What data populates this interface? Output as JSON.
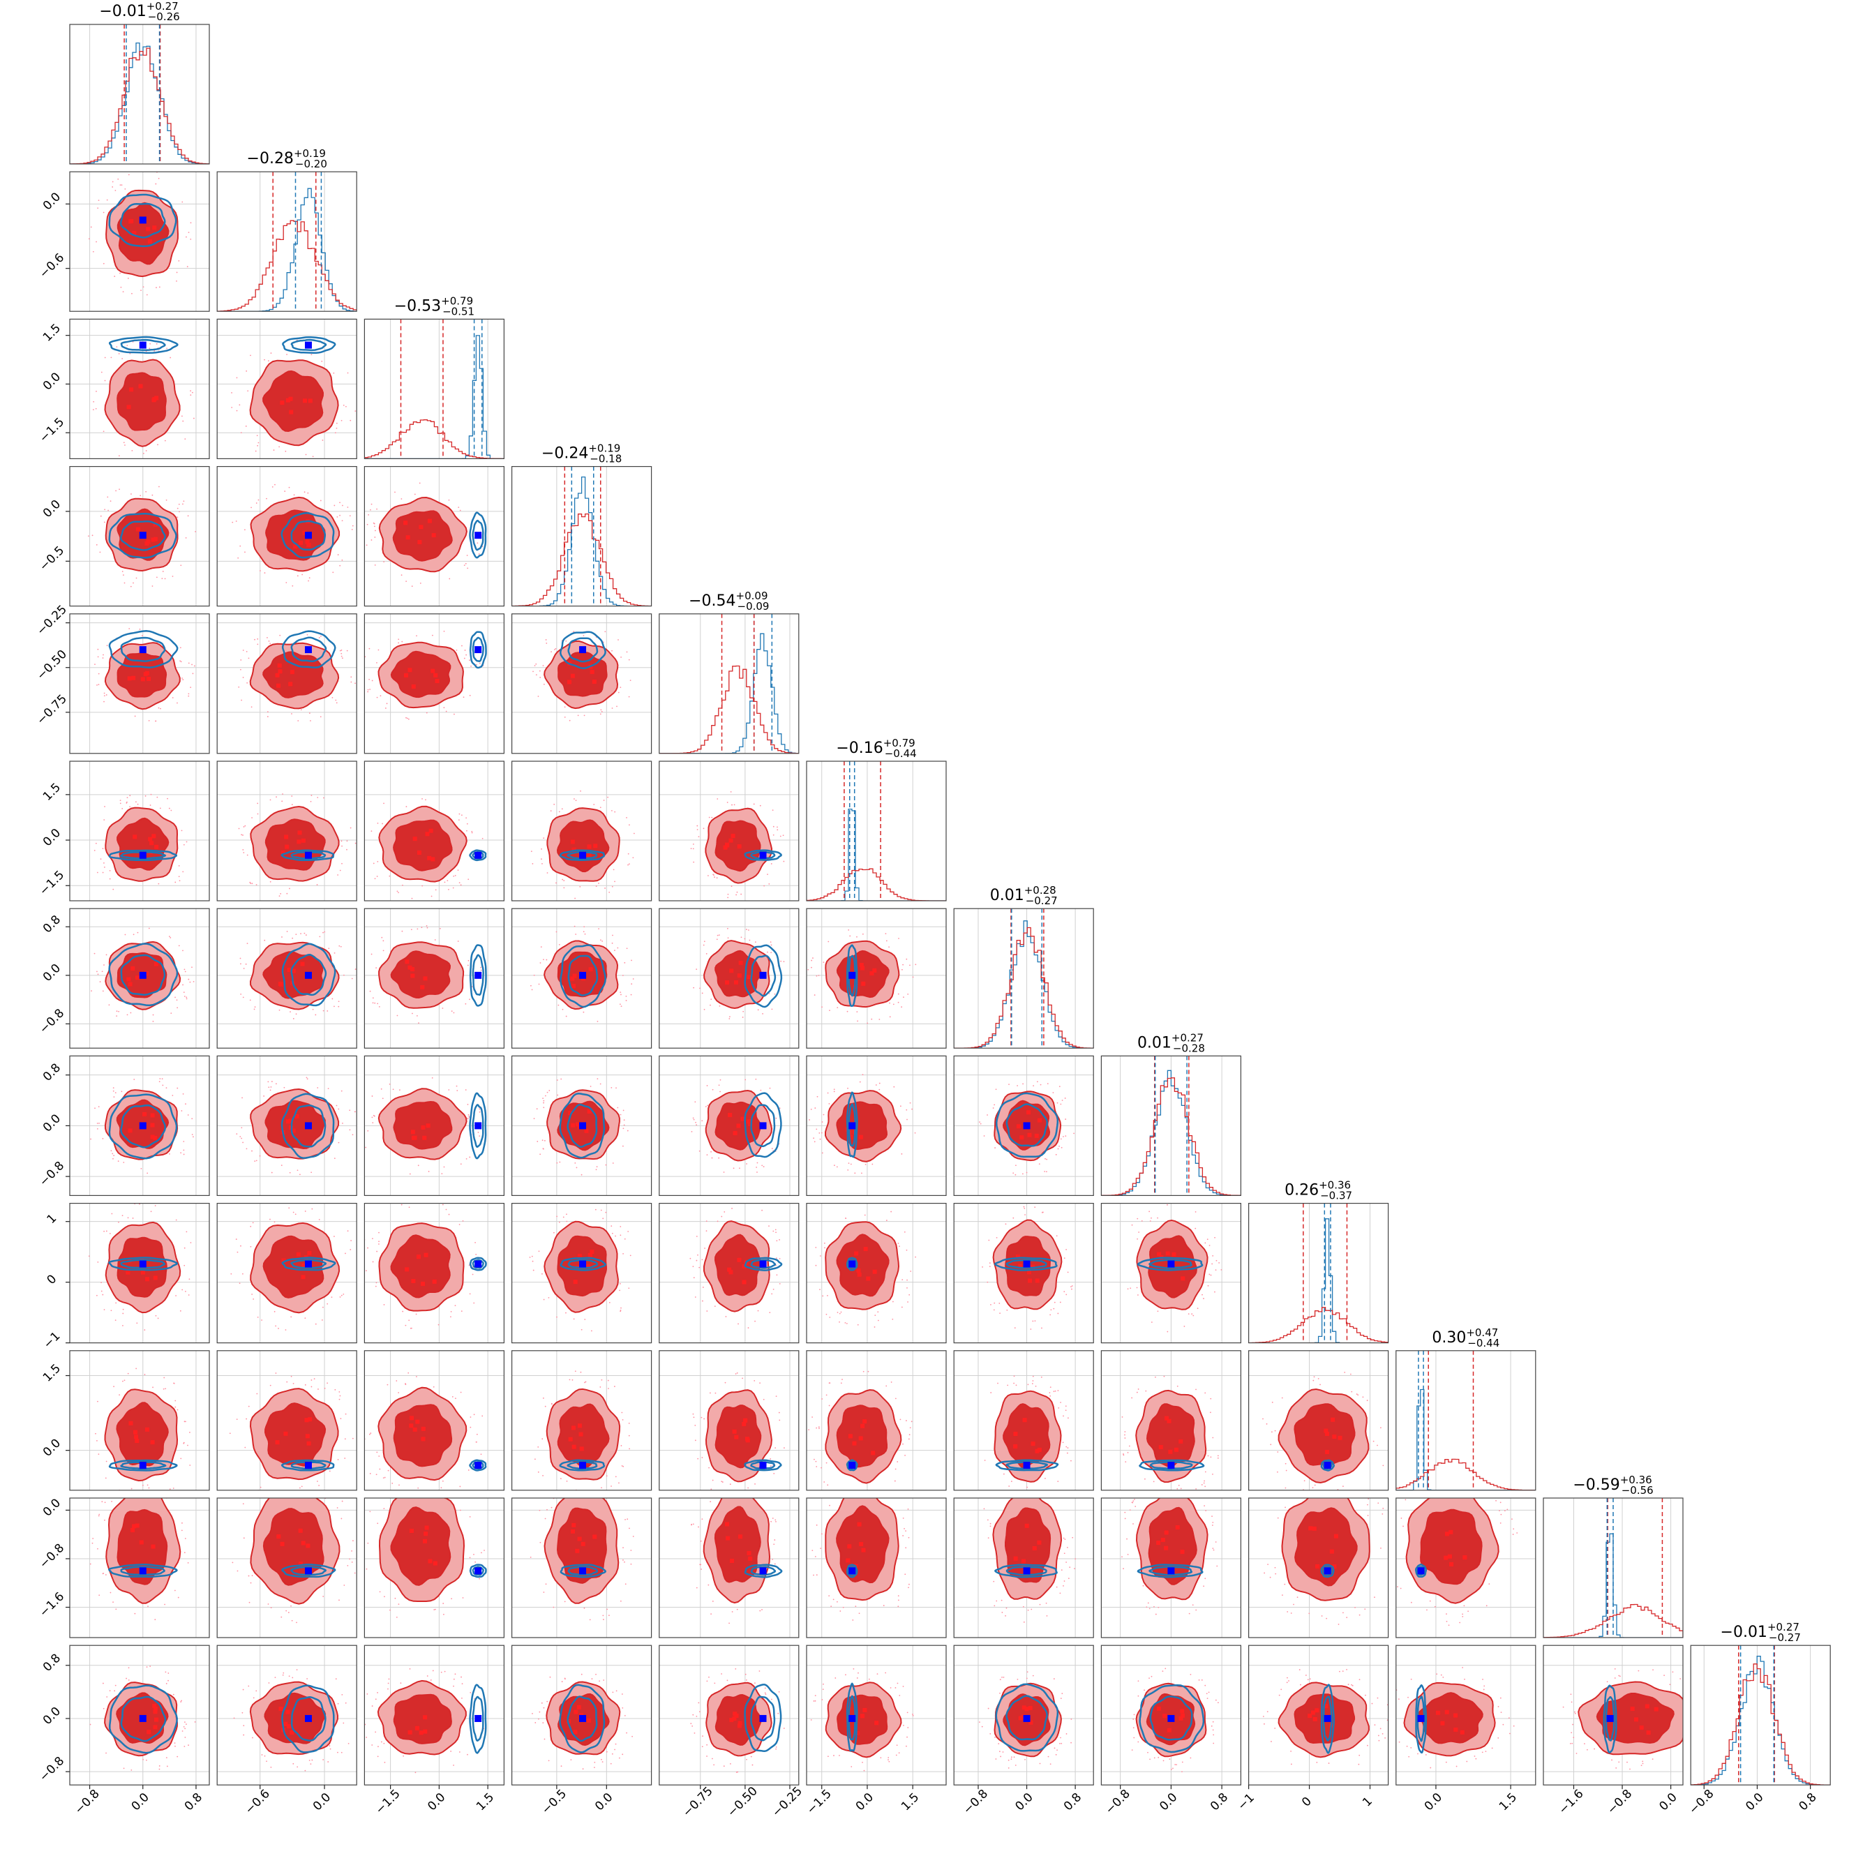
{
  "chart_data": {
    "type": "corner",
    "n_params": 12,
    "titles": [
      {
        "median": "−0.01",
        "plus": "+0.27",
        "minus": "−0.26"
      },
      {
        "median": "−0.28",
        "plus": "+0.19",
        "minus": "−0.20"
      },
      {
        "median": "−0.53",
        "plus": "+0.79",
        "minus": "−0.51"
      },
      {
        "median": "−0.24",
        "plus": "+0.19",
        "minus": "−0.18"
      },
      {
        "median": "−0.54",
        "plus": "+0.09",
        "minus": "−0.09"
      },
      {
        "median": "−0.16",
        "plus": "+0.79",
        "minus": "−0.44"
      },
      {
        "median": "0.01",
        "plus": "+0.28",
        "minus": "−0.27"
      },
      {
        "median": "0.01",
        "plus": "+0.27",
        "minus": "−0.28"
      },
      {
        "median": "0.26",
        "plus": "+0.36",
        "minus": "−0.37"
      },
      {
        "median": "0.30",
        "plus": "+0.47",
        "minus": "−0.44"
      },
      {
        "median": "−0.59",
        "plus": "+0.36",
        "minus": "−0.56"
      },
      {
        "median": "−0.01",
        "plus": "+0.27",
        "minus": "−0.27"
      }
    ],
    "params": [
      {
        "range": [
          -1.1,
          1.0
        ],
        "ticks": [
          -0.8,
          0.0,
          0.8
        ],
        "tick_labels": [
          "−0.8",
          "0.0",
          "0.8"
        ],
        "red": {
          "mu": -0.01,
          "sd": 0.27
        },
        "blue": {
          "mu": 0.0,
          "sd": 0.25
        },
        "truth": 0.0
      },
      {
        "range": [
          -1.0,
          0.3
        ],
        "ticks": [
          -0.6,
          0.0
        ],
        "tick_labels": [
          "−0.6",
          "0.0"
        ],
        "red": {
          "mu": -0.28,
          "sd": 0.2
        },
        "blue": {
          "mu": -0.15,
          "sd": 0.12
        },
        "truth": -0.15
      },
      {
        "range": [
          -2.3,
          2.0
        ],
        "ticks": [
          -1.5,
          0.0,
          1.5
        ],
        "tick_labels": [
          "−1.5",
          "0.0",
          "1.5"
        ],
        "red": {
          "mu": -0.53,
          "sd": 0.65
        },
        "blue": {
          "mu": 1.2,
          "sd": 0.12
        },
        "truth": 1.2
      },
      {
        "range": [
          -0.95,
          0.45
        ],
        "ticks": [
          -0.5,
          0.0
        ],
        "tick_labels": [
          "−0.5",
          "0.0"
        ],
        "red": {
          "mu": -0.24,
          "sd": 0.18
        },
        "blue": {
          "mu": -0.24,
          "sd": 0.11
        },
        "truth": -0.24
      },
      {
        "range": [
          -0.98,
          -0.2
        ],
        "ticks": [
          -0.75,
          -0.5,
          -0.25
        ],
        "tick_labels": [
          "−0.75",
          "−0.50",
          "−0.25"
        ],
        "red": {
          "mu": -0.54,
          "sd": 0.09
        },
        "blue": {
          "mu": -0.4,
          "sd": 0.05
        },
        "truth": -0.4
      },
      {
        "range": [
          -2.0,
          2.6
        ],
        "ticks": [
          -1.5,
          0.0,
          1.5
        ],
        "tick_labels": [
          "−1.5",
          "0.0",
          "1.5"
        ],
        "red": {
          "mu": -0.16,
          "sd": 0.6
        },
        "blue": {
          "mu": -0.5,
          "sd": 0.08
        },
        "truth": -0.5
      },
      {
        "range": [
          -1.2,
          1.1
        ],
        "ticks": [
          -0.8,
          0.0,
          0.8
        ],
        "tick_labels": [
          "−0.8",
          "0.0",
          "0.8"
        ],
        "red": {
          "mu": 0.01,
          "sd": 0.27
        },
        "blue": {
          "mu": 0.0,
          "sd": 0.25
        },
        "truth": 0.0
      },
      {
        "range": [
          -1.1,
          1.1
        ],
        "ticks": [
          -0.8,
          0.0,
          0.8
        ],
        "tick_labels": [
          "−0.8",
          "0.0",
          "0.8"
        ],
        "red": {
          "mu": 0.01,
          "sd": 0.27
        },
        "blue": {
          "mu": 0.0,
          "sd": 0.25
        },
        "truth": 0.0
      },
      {
        "range": [
          -1.0,
          1.3
        ],
        "ticks": [
          -1,
          0,
          1
        ],
        "tick_labels": [
          "−1",
          "0",
          "1"
        ],
        "red": {
          "mu": 0.26,
          "sd": 0.36
        },
        "blue": {
          "mu": 0.3,
          "sd": 0.05
        },
        "truth": 0.3
      },
      {
        "range": [
          -0.8,
          2.0
        ],
        "ticks": [
          0.0,
          1.5
        ],
        "tick_labels": [
          "0.0",
          "1.5"
        ],
        "red": {
          "mu": 0.3,
          "sd": 0.45
        },
        "blue": {
          "mu": -0.3,
          "sd": 0.05
        },
        "truth": -0.3
      },
      {
        "range": [
          -2.1,
          0.2
        ],
        "ticks": [
          -1.6,
          -0.8,
          0.0
        ],
        "tick_labels": [
          "−1.6",
          "−0.8",
          "0.0"
        ],
        "red": {
          "mu": -0.59,
          "sd": 0.45
        },
        "blue": {
          "mu": -1.0,
          "sd": 0.05
        },
        "truth": -1.0
      },
      {
        "range": [
          -1.0,
          1.1
        ],
        "ticks": [
          -0.8,
          0.0,
          0.8
        ],
        "tick_labels": [
          "−0.8",
          "0.0",
          "0.8"
        ],
        "red": {
          "mu": -0.01,
          "sd": 0.27
        },
        "blue": {
          "mu": 0.0,
          "sd": 0.25
        },
        "truth": 0.0
      }
    ],
    "series": [
      {
        "color": "#d62728"
      },
      {
        "color": "#1f77b4"
      }
    ],
    "truth_marker_color": "#0000ff",
    "grid": true
  }
}
